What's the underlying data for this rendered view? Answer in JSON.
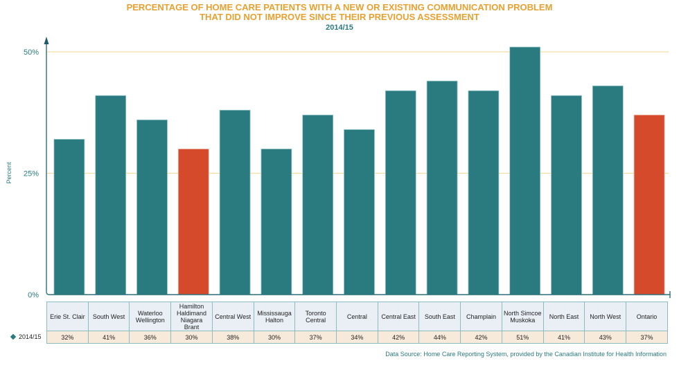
{
  "chart_data": {
    "type": "bar",
    "title": "PERCENTAGE OF HOME CARE PATIENTS WITH A NEW OR EXISTING COMMUNICATION PROBLEM",
    "title_line2": "THAT DID NOT IMPROVE SINCE THEIR PREVIOUS ASSESSMENT",
    "subtitle": "2014/15",
    "xlabel": "",
    "ylabel": "Percent",
    "ylim": [
      0,
      50
    ],
    "yticks": [
      0,
      25,
      50
    ],
    "ytick_labels": [
      "0%",
      "25%",
      "50%"
    ],
    "grid": true,
    "categories": [
      "Erie St. Clair",
      "South West",
      "Waterloo Wellington",
      "Hamilton Haldimand Niagara Brant",
      "Central West",
      "Mississauga Halton",
      "Toronto Central",
      "Central",
      "Central East",
      "South East",
      "Champlain",
      "North Simcoe Muskoka",
      "North East",
      "North West",
      "Ontario"
    ],
    "series": [
      {
        "name": "2014/15",
        "values": [
          32,
          41,
          36,
          30,
          38,
          30,
          37,
          34,
          42,
          44,
          42,
          51,
          41,
          43,
          37
        ],
        "value_labels": [
          "32%",
          "41%",
          "36%",
          "30%",
          "38%",
          "30%",
          "37%",
          "34%",
          "42%",
          "44%",
          "42%",
          "51%",
          "41%",
          "43%",
          "37%"
        ]
      }
    ],
    "highlighted_categories": [
      "Hamilton Haldimand Niagara Brant",
      "Ontario"
    ],
    "legend_placement": "bottom-left (data table)",
    "source": "Data Source: Home Care Reporting System, provided by the Canadian Institute for Health Information"
  },
  "table": {
    "header_lines": [
      [
        "Erie St. Clair"
      ],
      [
        "South West"
      ],
      [
        "Waterloo",
        "Wellington"
      ],
      [
        "Hamilton",
        "Haldimand",
        "Niagara",
        "Brant"
      ],
      [
        "Central West"
      ],
      [
        "Mississauga",
        "Halton"
      ],
      [
        "Toronto",
        "Central"
      ],
      [
        "Central"
      ],
      [
        "Central East"
      ],
      [
        "South East"
      ],
      [
        "Champlain"
      ],
      [
        "North Simcoe",
        "Muskoka"
      ],
      [
        "North East"
      ],
      [
        "North West"
      ],
      [
        "Ontario"
      ]
    ],
    "legend_label": "2014/15"
  },
  "colors": {
    "bar": "#2a7b80",
    "highlight": "#d44a2a",
    "title": "#e8a030",
    "axis": "#2a6f7a",
    "grid": "#f5dca0"
  }
}
